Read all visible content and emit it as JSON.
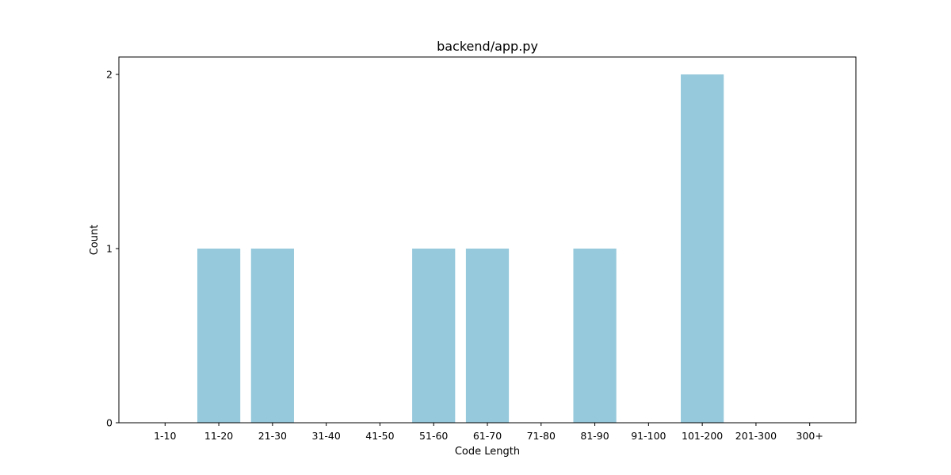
{
  "chart_data": {
    "type": "bar",
    "title": "backend/app.py",
    "xlabel": "Code Length",
    "ylabel": "Count",
    "categories": [
      "1-10",
      "11-20",
      "21-30",
      "31-40",
      "41-50",
      "51-60",
      "61-70",
      "71-80",
      "81-90",
      "91-100",
      "101-200",
      "201-300",
      "300+"
    ],
    "values": [
      0,
      1,
      1,
      0,
      0,
      1,
      1,
      0,
      1,
      0,
      2,
      0,
      0
    ],
    "ylim": [
      0,
      2.1
    ],
    "yticks": [
      0,
      1,
      2
    ],
    "grid": false,
    "bar_color": "#96c9dc"
  }
}
